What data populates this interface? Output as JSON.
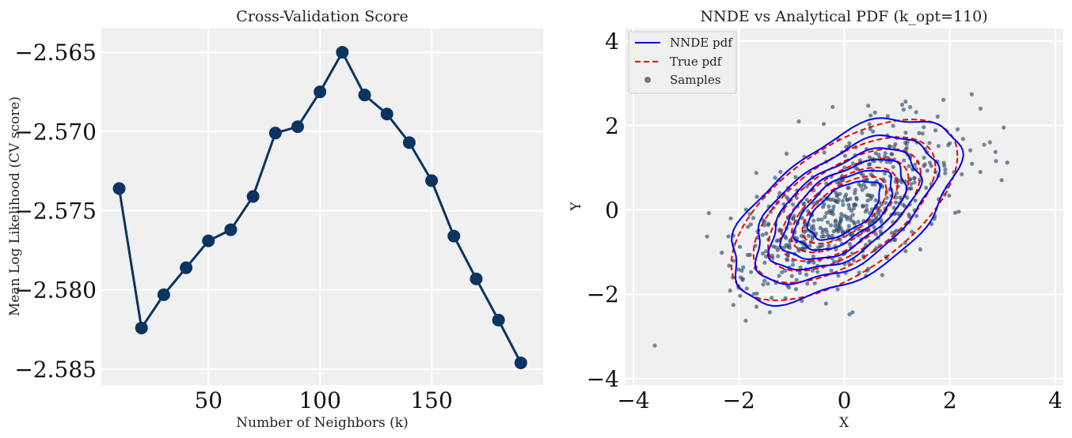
{
  "chart_data": [
    {
      "type": "line",
      "title": "Cross-Validation Score",
      "xlabel": "Number of Neighbors (k)",
      "ylabel": "Mean Log Likelihood (CV score)",
      "xlim": [
        2,
        200
      ],
      "ylim": [
        -2.586,
        -2.5635
      ],
      "xticks": [
        50,
        100,
        150
      ],
      "xtick_labels": [
        "50",
        "100",
        "150"
      ],
      "yticks": [
        -2.565,
        -2.57,
        -2.575,
        -2.58,
        -2.585
      ],
      "ytick_labels": [
        "−2.565",
        "−2.570",
        "−2.575",
        "−2.580",
        "−2.585"
      ],
      "grid": true,
      "series": [
        {
          "color": "#0b3460",
          "marker": "circle",
          "x": [
            10,
            20,
            30,
            40,
            50,
            60,
            70,
            80,
            90,
            100,
            110,
            120,
            130,
            140,
            150,
            160,
            170,
            180,
            190
          ],
          "values": [
            -2.5736,
            -2.5824,
            -2.5803,
            -2.5786,
            -2.5769,
            -2.5762,
            -2.5741,
            -2.5701,
            -2.5697,
            -2.5675,
            -2.565,
            -2.5677,
            -2.5689,
            -2.5707,
            -2.5731,
            -2.5766,
            -2.5793,
            -2.5819,
            -2.5846
          ]
        }
      ]
    },
    {
      "type": "scatter",
      "title": "NNDE vs Analytical PDF (k_opt=110)",
      "xlabel": "X",
      "ylabel": "Y",
      "xlim": [
        -4.15,
        4.15
      ],
      "ylim": [
        -4.15,
        4.3
      ],
      "xticks": [
        -4,
        -2,
        0,
        2,
        4
      ],
      "xtick_labels": [
        "−4",
        "−2",
        "0",
        "2",
        "4"
      ],
      "yticks": [
        -4,
        -2,
        0,
        2,
        4
      ],
      "ytick_labels": [
        "−4",
        "−2",
        "0",
        "2",
        "4"
      ],
      "grid": true,
      "legend_position": "top-left",
      "legend": [
        {
          "label": "NNDE pdf",
          "style": "solid",
          "color": "#0000ee"
        },
        {
          "label": "True pdf",
          "style": "dashed",
          "color": "#ee0000"
        },
        {
          "label": "Samples",
          "style": "marker",
          "color": "#777777"
        }
      ],
      "true_pdf": {
        "mean": [
          0,
          0
        ],
        "cov": [
          [
            1,
            0.6
          ],
          [
            0.6,
            1
          ]
        ],
        "levels": [
          0.02,
          0.045,
          0.07,
          0.095,
          0.12,
          0.145
        ],
        "color": "#ee0000"
      },
      "nnde_pdf": {
        "mean": [
          0,
          0
        ],
        "cov": [
          [
            1.05,
            0.6
          ],
          [
            0.6,
            1.08
          ]
        ],
        "levels": [
          0.02,
          0.045,
          0.07,
          0.095,
          0.12,
          0.145
        ],
        "color": "#0000ee"
      },
      "samples": {
        "n": 620,
        "color": "#2c4f6b",
        "seed": 7
      }
    }
  ]
}
